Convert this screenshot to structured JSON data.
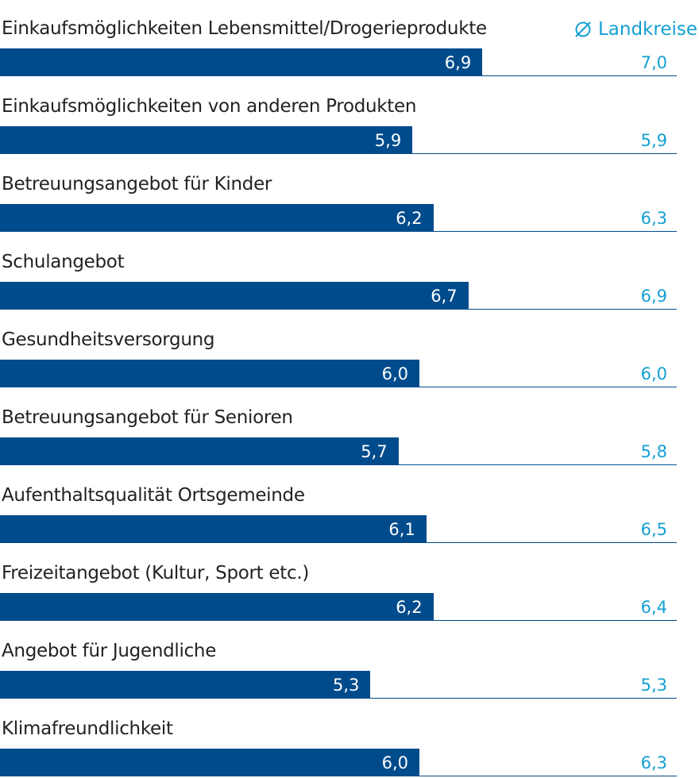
{
  "chart_data": {
    "type": "bar",
    "orientation": "horizontal",
    "categories": [
      "Einkaufsmöglichkeiten Lebensmittel/Drogerieprodukte",
      "Einkaufsmöglichkeiten von anderen Produkten",
      "Betreuungsangebot für Kinder",
      "Schulangebot",
      "Gesundheitsversorgung",
      "Betreuungsangebot für Senioren",
      "Aufenthaltsqualität Ortsgemeinde",
      "Freizeitangebot (Kultur, Sport etc.)",
      "Angebot für Jugendliche",
      "Klimafreundlichkeit"
    ],
    "series": [
      {
        "values": [
          6.9,
          5.9,
          6.2,
          6.7,
          6.0,
          5.7,
          6.1,
          6.2,
          5.3,
          6.0
        ],
        "labels": [
          "6,9",
          "5,9",
          "6,2",
          "6,7",
          "6,0",
          "5,7",
          "6,1",
          "6,2",
          "5,3",
          "6,0"
        ],
        "color": "#004b8c"
      },
      {
        "name": "Landkreise",
        "values": [
          7.0,
          5.9,
          6.3,
          6.9,
          6.0,
          5.8,
          6.5,
          6.4,
          5.3,
          6.3
        ],
        "labels": [
          "7,0",
          "5,9",
          "6,3",
          "6,9",
          "6,0",
          "5,8",
          "6,5",
          "6,4",
          "5,3",
          "6,3"
        ],
        "color": "#14a0d2"
      }
    ],
    "legend": {
      "text": "Landkreise",
      "symbol": "diameter-icon",
      "placement": "top-right"
    },
    "xlim": [
      0,
      10
    ]
  }
}
